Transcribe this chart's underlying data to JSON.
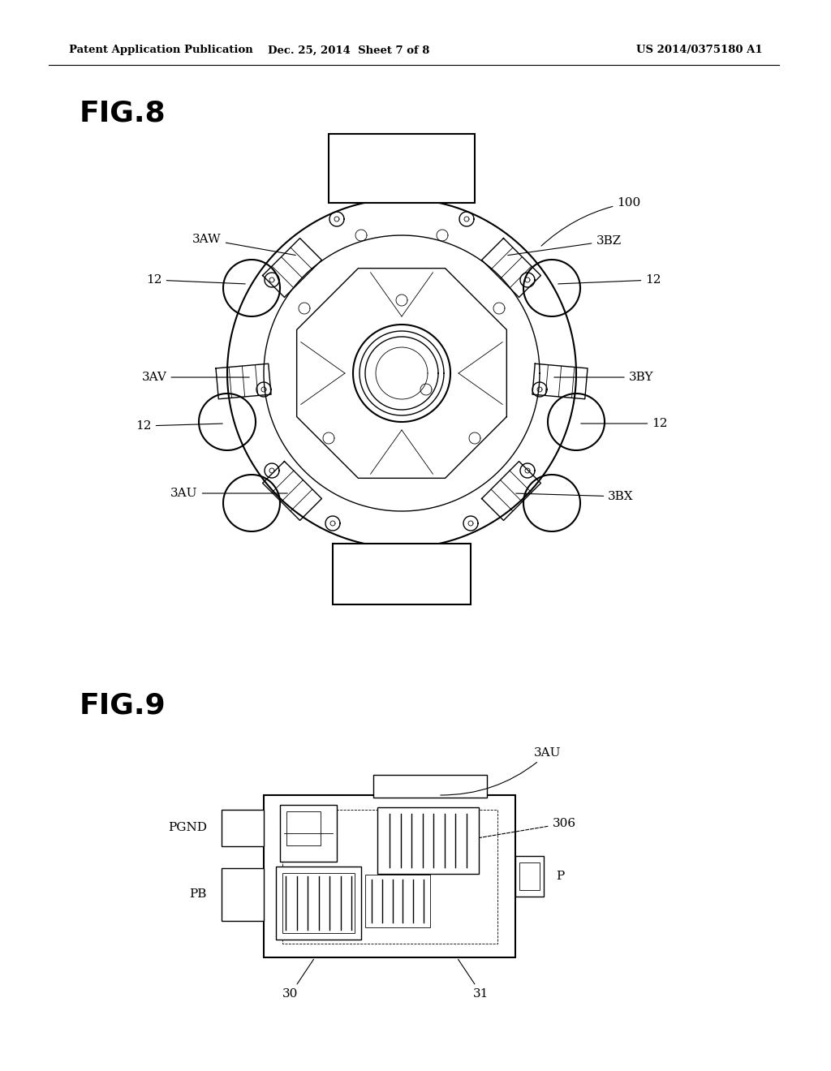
{
  "bg_color": "#ffffff",
  "line_color": "#000000",
  "fig_width": 10.24,
  "fig_height": 13.2,
  "header": {
    "left": "Patent Application Publication",
    "center": "Dec. 25, 2014  Sheet 7 of 8",
    "right": "US 2014/0375180 A1",
    "fontsize": 10
  }
}
